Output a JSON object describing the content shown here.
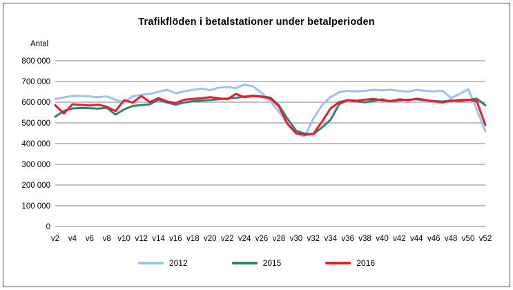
{
  "window": {
    "background": "#ffffff",
    "frame_border_color": "#4d4d4d"
  },
  "chart_data": {
    "type": "line",
    "title": "Trafikflöden i betalstationer under betalperioden",
    "ylabel": "Antal",
    "ylim": [
      0,
      800000
    ],
    "ytick_step": 100000,
    "yticks": [
      {
        "value": 800000,
        "label": "800 000"
      },
      {
        "value": 700000,
        "label": "700 000"
      },
      {
        "value": 600000,
        "label": "600 000"
      },
      {
        "value": 500000,
        "label": "500 000"
      },
      {
        "value": 400000,
        "label": "400 000"
      },
      {
        "value": 300000,
        "label": "300 000"
      },
      {
        "value": 200000,
        "label": "200 000"
      },
      {
        "value": 100000,
        "label": "100 000"
      },
      {
        "value": 0,
        "label": "0"
      }
    ],
    "grid": "horizontal",
    "gridline_color": "#808080",
    "legend_position": "bottom",
    "x_unit": "week",
    "x": [
      2,
      3,
      4,
      5,
      6,
      7,
      8,
      9,
      10,
      11,
      12,
      13,
      14,
      15,
      16,
      17,
      18,
      19,
      20,
      21,
      22,
      23,
      24,
      25,
      26,
      27,
      28,
      29,
      30,
      31,
      32,
      33,
      34,
      35,
      36,
      37,
      38,
      39,
      40,
      41,
      42,
      43,
      44,
      45,
      46,
      47,
      48,
      49,
      50,
      51,
      52
    ],
    "x_axis_labels": [
      "v2",
      "v4",
      "v6",
      "v8",
      "v10",
      "v12",
      "v14",
      "v16",
      "v18",
      "v20",
      "v22",
      "v24",
      "v26",
      "v28",
      "v30",
      "v32",
      "v34",
      "v36",
      "v38",
      "v40",
      "v42",
      "v44",
      "v46",
      "v48",
      "v50",
      "v52"
    ],
    "series": [
      {
        "name": "2012",
        "color": "#9DC3E6",
        "values": [
          615000,
          623000,
          630000,
          630000,
          628000,
          624000,
          628000,
          612000,
          597000,
          628000,
          636000,
          640000,
          650000,
          660000,
          643000,
          652000,
          660000,
          665000,
          658000,
          670000,
          673000,
          668000,
          685000,
          676000,
          645000,
          605000,
          555000,
          495000,
          448000,
          435000,
          520000,
          585000,
          625000,
          648000,
          655000,
          652000,
          655000,
          660000,
          657000,
          660000,
          655000,
          650000,
          660000,
          655000,
          652000,
          656000,
          620000,
          640000,
          663000,
          565000,
          460000
        ]
      },
      {
        "name": "2015",
        "color": "#2F8270",
        "values": [
          530000,
          558000,
          570000,
          572000,
          571000,
          569000,
          573000,
          540000,
          565000,
          582000,
          586000,
          590000,
          612000,
          598000,
          588000,
          598000,
          605000,
          608000,
          610000,
          614000,
          618000,
          621000,
          627000,
          632000,
          628000,
          622000,
          585000,
          520000,
          462000,
          448000,
          445000,
          478000,
          515000,
          590000,
          610000,
          604000,
          599000,
          607000,
          614000,
          604000,
          609000,
          612000,
          614000,
          609000,
          606000,
          603000,
          609000,
          606000,
          611000,
          617000,
          585000
        ]
      },
      {
        "name": "2016",
        "color": "#EB1C2D",
        "values": [
          585000,
          545000,
          590000,
          587000,
          584000,
          588000,
          578000,
          557000,
          610000,
          598000,
          630000,
          600000,
          620000,
          604000,
          596000,
          612000,
          616000,
          619000,
          624000,
          619000,
          614000,
          640000,
          624000,
          630000,
          626000,
          618000,
          580000,
          495000,
          450000,
          442000,
          447000,
          505000,
          570000,
          600000,
          610000,
          607000,
          612000,
          616000,
          609000,
          606000,
          614000,
          609000,
          617000,
          611000,
          604000,
          599000,
          606000,
          611000,
          612000,
          605000,
          490000
        ]
      }
    ]
  }
}
